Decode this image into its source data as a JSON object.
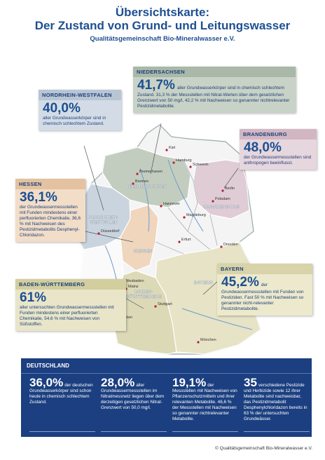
{
  "header": {
    "title_lines": [
      "Übersichtskarte:",
      "Der Zustand von Grund- und Leitungswasser"
    ],
    "subtitle": "Qualitätsgemeinschaft Bio-Mineralwasser e.V."
  },
  "regions": [
    {
      "name": "NIEDERSACHSEN",
      "percent": "41,7%",
      "text": "aller Grundwasserkörper sind in chemisch schlechtem Zustand. 31,3 % der Messstellen mit Nitrat-Werten über dem gesetzlichen Grenzwert von 50 mg/l, 42,2 % mit Nachweisen so genannter nichtrelevanter Pestizidmetabolite."
    },
    {
      "name": "NORDRHEIN-WESTFALEN",
      "percent": "40,0%",
      "text": "aller Grundwasserkörper sind in chemisch schlechtem Zustand."
    },
    {
      "name": "BRANDENBURG",
      "percent": "48,0%",
      "text": "der Grundwassermess­stellen sind anthropogen beeinflusst."
    },
    {
      "name": "HESSEN",
      "percent": "36,1%",
      "text": "der Grundwassermess­stellen mit Funden mindestens einer per­fluorierten Chemikalie, 36,6 % mit Nachweisen des Pestizidmetabolits Desphenyl-Chloridazon."
    },
    {
      "name": "BAYERN",
      "percent": "45,2%",
      "text": "der Grundwassermessstellen mit Funden von Pestiziden. Fast 50 % mit Nachweisen so genannter nicht-relevanter Pestizidmetabolite."
    },
    {
      "name": "BADEN-WÜRTTEMBERG",
      "percent": "61%",
      "text": "aller untersuchten Grundwasser­messstellen mit Funden mindestens einer perfluorierten Chemikalie, 54,6 % mit Nachweisen von Süßstoffen."
    }
  ],
  "map": {
    "state_labels": [
      "NIEDERSACHSEN",
      "NORDRHEIN-\nWESTFALEN",
      "HESSEN",
      "BRANDENBURG",
      "BAYERN",
      "BADEN-\nWÜRTTEMBERG"
    ],
    "cities": [
      "Kiel",
      "Hamburg",
      "Bremerhaven",
      "Bremen",
      "Schwerin",
      "Berlin",
      "Potsdam",
      "Hannover",
      "Magdeburg",
      "Düsseldorf",
      "Erfurt",
      "Dresden",
      "Wiesbaden",
      "Mainz",
      "Saarbrücken",
      "Stuttgart",
      "München"
    ]
  },
  "deutschland": {
    "title": "DEUTSCHLAND",
    "stats": [
      {
        "value": "36,0%",
        "text": "der deutschen Grundwasser­körper sind schon heute in chemisch schlechtem Zustand."
      },
      {
        "value": "28,0%",
        "text": "aller Grundwassermess­stellen im Nitratmessnetz liegen über dem derzeitigen gesetzlichen Nitrat-Grenzwert von 50,0 mg/l."
      },
      {
        "value": "19,1%",
        "text": "der Messstellen mit Nachweisen von Pflanzenschutzmitteln und ihrer relevanten Metabolite. 46,6 % der Messstellen mit Nachweisen so genannter nichtrelevanter Metabolite."
      },
      {
        "value": "35",
        "text": "verschiedene Pestizide und Herbizide sowie 12 ihrer Metabolite sind nachweisbar, das Pestizidmetabolit Desphenylchloridazon bereits in 63 % der untersuchten Grundwässer."
      }
    ]
  },
  "footer": "© Qualitätsgemeinschaft Bio-Mineralwasser e.V."
}
